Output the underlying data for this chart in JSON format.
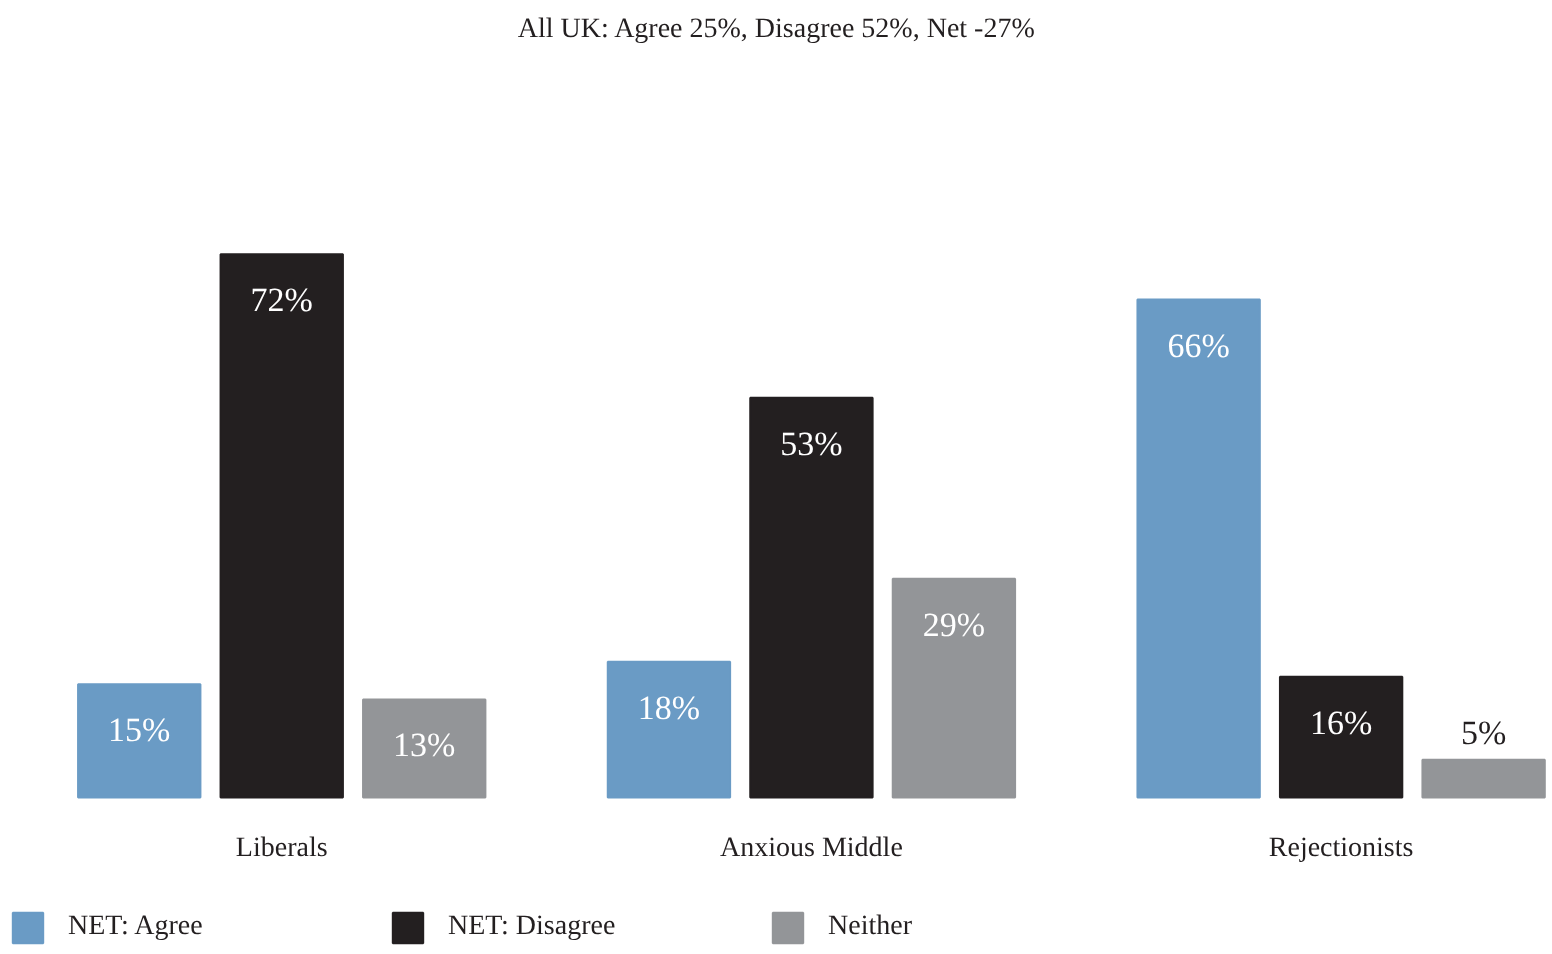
{
  "chart_data": {
    "type": "bar",
    "title": "All UK: Agree 25%, Disagree 52%, Net -27%",
    "categories": [
      "Liberals",
      "Anxious Middle",
      "Rejectionists"
    ],
    "series": [
      {
        "name": "NET: Agree",
        "color": "#6a9bc5",
        "values": [
          15,
          18,
          66
        ],
        "value_labels": [
          "15%",
          "18%",
          "66%"
        ]
      },
      {
        "name": "NET: Disagree",
        "color": "#231f20",
        "values": [
          72,
          53,
          16
        ],
        "value_labels": [
          "72%",
          "53%",
          "16%"
        ]
      },
      {
        "name": "Neither",
        "color": "#939598",
        "values": [
          13,
          29,
          5
        ],
        "value_labels": [
          "13%",
          "29%",
          "5%"
        ]
      }
    ],
    "legend": "bottom left"
  }
}
